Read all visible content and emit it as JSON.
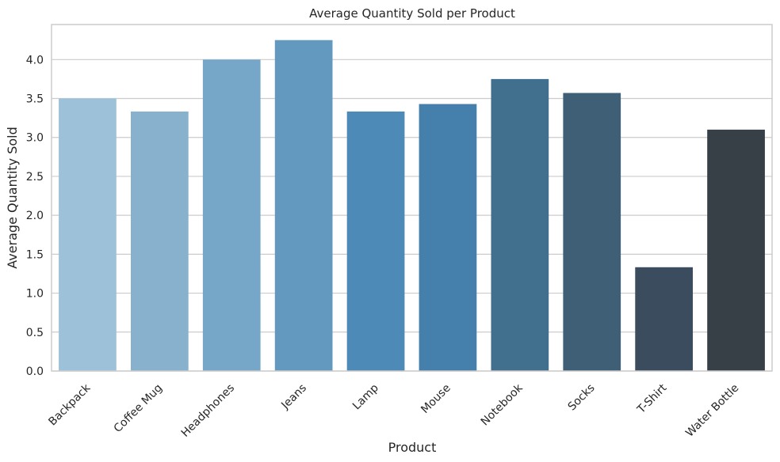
{
  "chart_data": {
    "type": "bar",
    "title": "Average Quantity Sold per Product",
    "xlabel": "Product",
    "ylabel": "Average Quantity Sold",
    "categories": [
      "Backpack",
      "Coffee Mug",
      "Headphones",
      "Jeans",
      "Lamp",
      "Mouse",
      "Notebook",
      "Socks",
      "T-Shirt",
      "Water Bottle"
    ],
    "values": [
      3.5,
      3.333,
      4.0,
      4.25,
      3.333,
      3.429,
      3.75,
      3.571,
      1.333,
      3.1
    ],
    "ylim": [
      0,
      4.45
    ],
    "yticks": [
      "0.0",
      "0.5",
      "1.0",
      "1.5",
      "2.0",
      "2.5",
      "3.0",
      "3.5",
      "4.0"
    ],
    "grid": true,
    "legend": "none",
    "colors": [
      "#9dc1d8",
      "#88b1ce",
      "#77a7c8",
      "#6499bf",
      "#4d8ab8",
      "#457fac",
      "#416f8e",
      "#3e5f76",
      "#3a4c5d",
      "#374046"
    ]
  }
}
